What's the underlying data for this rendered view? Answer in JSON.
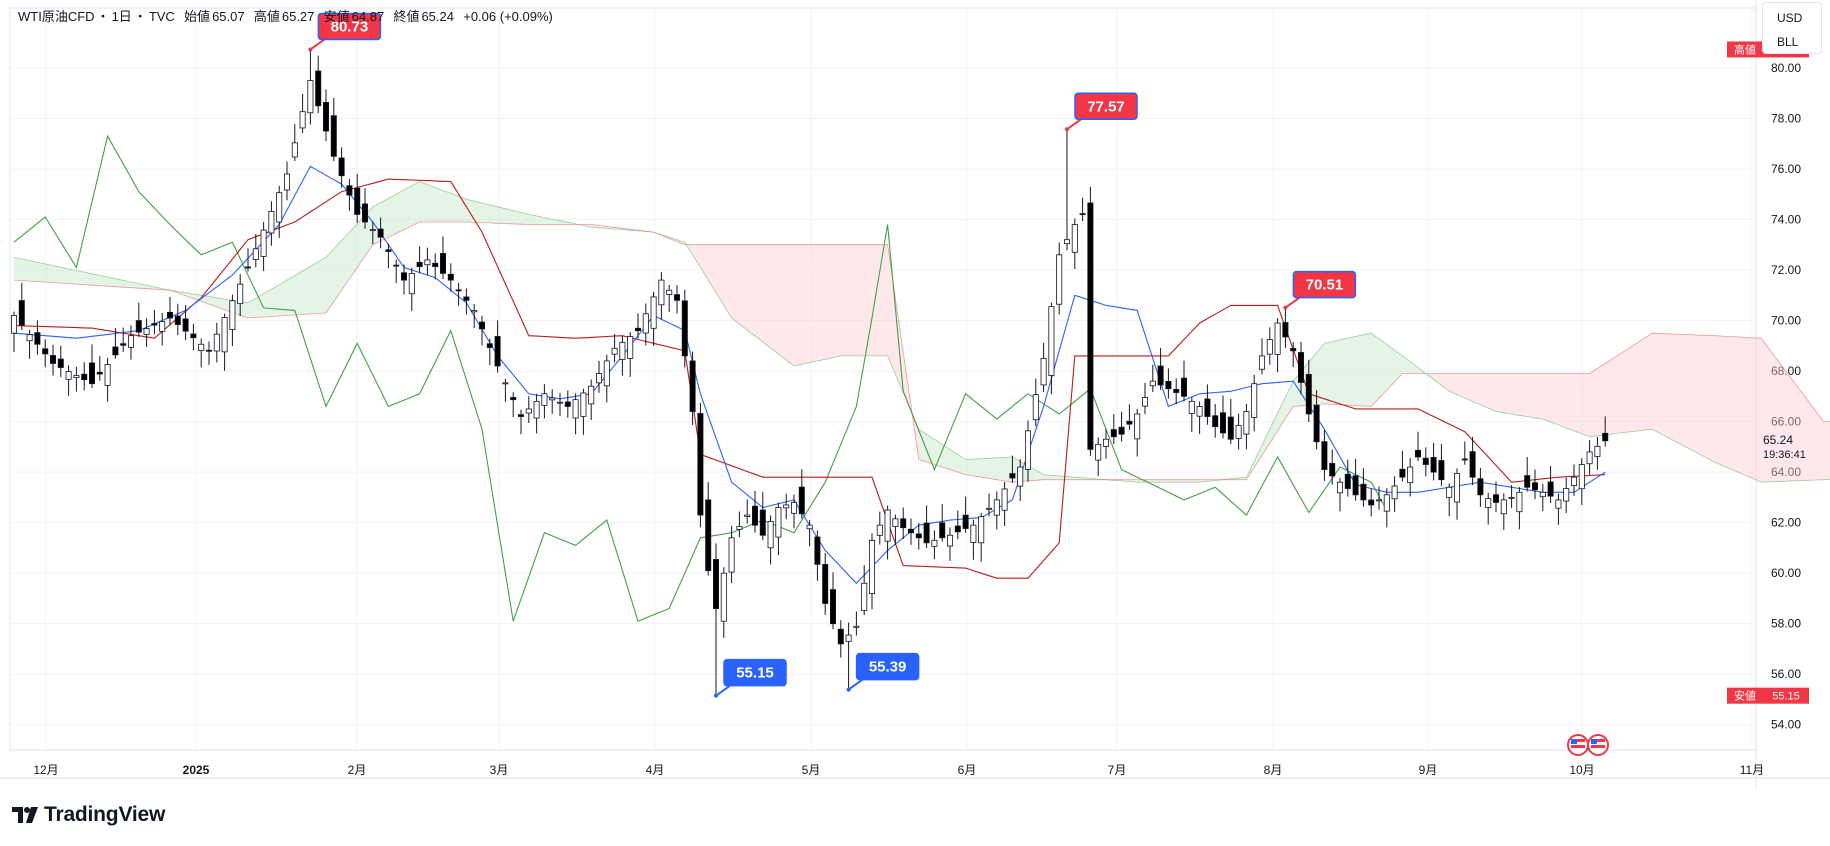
{
  "header": {
    "symbol": "WTI原油CFD",
    "sep1": "・",
    "timeframe": "1日",
    "sep2": "・",
    "source": "TVC",
    "open_label": "始値",
    "open": "65.07",
    "high_label": "高値",
    "high": "65.27",
    "low_label": "安値",
    "low": "64.87",
    "close_label": "終値",
    "close": "65.24",
    "change": "+0.06 (+0.09%)"
  },
  "currency": {
    "unit1": "USD",
    "unit2": "BLL"
  },
  "branding": {
    "name": "TradingView"
  },
  "colors": {
    "up_candle": "#ffffff",
    "down_candle": "#000000",
    "tenkan": "#2962ff",
    "kijun": "#b71c1c",
    "chikou": "#43a047",
    "kumo_bull": "#c8e6c9",
    "kumo_bear": "#ffcdd2",
    "callout_high": "#f23645",
    "callout_low": "#2962ff"
  },
  "chart_data": {
    "type": "candlestick",
    "indicator": "ichimoku",
    "y_axis": {
      "ticks": [
        "80.00",
        "78.00",
        "76.00",
        "74.00",
        "72.00",
        "70.00",
        "68.00",
        "66.00",
        "64.00",
        "62.00",
        "60.00",
        "58.00",
        "56.00",
        "54.00"
      ],
      "range": [
        53.0,
        81.5
      ]
    },
    "x_axis": {
      "labels": [
        "12月",
        "2025",
        "2月",
        "3月",
        "4月",
        "5月",
        "6月",
        "7月",
        "8月",
        "9月",
        "10月",
        "11月"
      ]
    },
    "last_price": "65.24",
    "countdown": "19:36:41",
    "high_badge": {
      "label": "高値",
      "value": "80.73"
    },
    "low_badge": {
      "label": "安値",
      "value": "55.15"
    },
    "callouts": [
      {
        "text": "80.73",
        "kind": "high",
        "date_index": 38,
        "price": 80.73
      },
      {
        "text": "77.57",
        "kind": "high",
        "date_index": 135,
        "price": 77.57
      },
      {
        "text": "70.51",
        "kind": "high",
        "date_index": 163,
        "price": 70.51
      },
      {
        "text": "55.15",
        "kind": "low",
        "date_index": 90,
        "price": 55.15
      },
      {
        "text": "55.39",
        "kind": "low",
        "date_index": 107,
        "price": 55.39
      }
    ],
    "key_closes": [
      [
        0,
        70.2
      ],
      [
        5,
        68.3
      ],
      [
        10,
        67.5
      ],
      [
        15,
        69.4
      ],
      [
        20,
        70.1
      ],
      [
        25,
        68.8
      ],
      [
        30,
        72.1
      ],
      [
        35,
        75.8
      ],
      [
        38,
        79.5
      ],
      [
        41,
        76.5
      ],
      [
        44,
        74.2
      ],
      [
        47,
        73.3
      ],
      [
        50,
        71.6
      ],
      [
        53,
        72.4
      ],
      [
        56,
        71.6
      ],
      [
        59,
        70.4
      ],
      [
        62,
        68.2
      ],
      [
        65,
        66.2
      ],
      [
        68,
        67.1
      ],
      [
        71,
        66.6
      ],
      [
        74,
        67.4
      ],
      [
        77,
        68.9
      ],
      [
        80,
        69.6
      ],
      [
        83,
        71.6
      ],
      [
        85,
        70.8
      ],
      [
        87,
        66.4
      ],
      [
        88,
        62.3
      ],
      [
        89,
        60.1
      ],
      [
        90,
        58.6
      ],
      [
        92,
        61.4
      ],
      [
        94,
        62.3
      ],
      [
        96,
        61.5
      ],
      [
        98,
        62.6
      ],
      [
        100,
        62.8
      ],
      [
        102,
        61.9
      ],
      [
        104,
        58.8
      ],
      [
        106,
        57.2
      ],
      [
        108,
        57.9
      ],
      [
        110,
        61.3
      ],
      [
        112,
        62.5
      ],
      [
        114,
        61.8
      ],
      [
        117,
        61.2
      ],
      [
        120,
        61.5
      ],
      [
        123,
        61.9
      ],
      [
        126,
        62.9
      ],
      [
        129,
        64.2
      ],
      [
        132,
        68.5
      ],
      [
        134,
        72.6
      ],
      [
        136,
        73.8
      ],
      [
        137,
        74.2
      ],
      [
        138,
        64.9
      ],
      [
        140,
        65.3
      ],
      [
        142,
        65.5
      ],
      [
        144,
        66.3
      ],
      [
        146,
        67.6
      ],
      [
        148,
        67.3
      ],
      [
        150,
        67.0
      ],
      [
        152,
        66.6
      ],
      [
        154,
        65.8
      ],
      [
        156,
        65.3
      ],
      [
        158,
        66.4
      ],
      [
        160,
        68.6
      ],
      [
        162,
        69.9
      ],
      [
        164,
        68.8
      ],
      [
        166,
        66.3
      ],
      [
        168,
        64.1
      ],
      [
        170,
        63.6
      ],
      [
        172,
        63.1
      ],
      [
        174,
        62.7
      ],
      [
        176,
        63.1
      ],
      [
        178,
        63.8
      ],
      [
        180,
        64.6
      ],
      [
        182,
        64.0
      ],
      [
        184,
        63.4
      ],
      [
        186,
        64.5
      ],
      [
        188,
        63.1
      ],
      [
        190,
        62.8
      ],
      [
        192,
        63.0
      ],
      [
        194,
        63.4
      ],
      [
        196,
        63.2
      ],
      [
        198,
        62.9
      ],
      [
        200,
        63.8
      ],
      [
        202,
        64.8
      ],
      [
        204,
        65.24
      ]
    ],
    "tenkan_points": [
      [
        0,
        69.5
      ],
      [
        8,
        69.3
      ],
      [
        16,
        69.6
      ],
      [
        22,
        70.4
      ],
      [
        28,
        71.8
      ],
      [
        34,
        73.8
      ],
      [
        38,
        76.1
      ],
      [
        42,
        75.4
      ],
      [
        46,
        73.9
      ],
      [
        50,
        72.1
      ],
      [
        54,
        71.7
      ],
      [
        58,
        70.7
      ],
      [
        62,
        68.6
      ],
      [
        66,
        67.1
      ],
      [
        70,
        66.9
      ],
      [
        74,
        67.1
      ],
      [
        78,
        68.6
      ],
      [
        82,
        70.2
      ],
      [
        86,
        69.6
      ],
      [
        88,
        67.1
      ],
      [
        92,
        63.6
      ],
      [
        96,
        62.6
      ],
      [
        100,
        62.9
      ],
      [
        104,
        60.9
      ],
      [
        108,
        59.6
      ],
      [
        112,
        60.9
      ],
      [
        116,
        61.9
      ],
      [
        120,
        62.1
      ],
      [
        124,
        62.2
      ],
      [
        128,
        62.9
      ],
      [
        132,
        66.6
      ],
      [
        136,
        71.0
      ],
      [
        140,
        70.6
      ],
      [
        144,
        70.4
      ],
      [
        148,
        66.6
      ],
      [
        152,
        67.1
      ],
      [
        156,
        67.2
      ],
      [
        160,
        67.5
      ],
      [
        164,
        67.6
      ],
      [
        168,
        65.7
      ],
      [
        172,
        63.5
      ],
      [
        176,
        63.2
      ],
      [
        180,
        63.2
      ],
      [
        184,
        63.4
      ],
      [
        188,
        63.6
      ],
      [
        192,
        63.4
      ],
      [
        196,
        63.2
      ],
      [
        200,
        63.2
      ],
      [
        204,
        64.0
      ]
    ],
    "kijun_points": [
      [
        0,
        69.8
      ],
      [
        10,
        69.7
      ],
      [
        18,
        69.3
      ],
      [
        24,
        70.9
      ],
      [
        30,
        73.2
      ],
      [
        36,
        73.9
      ],
      [
        42,
        75.1
      ],
      [
        48,
        75.6
      ],
      [
        56,
        75.5
      ],
      [
        60,
        73.5
      ],
      [
        66,
        69.4
      ],
      [
        72,
        69.3
      ],
      [
        78,
        69.4
      ],
      [
        86,
        68.8
      ],
      [
        88,
        64.7
      ],
      [
        96,
        63.8
      ],
      [
        104,
        63.8
      ],
      [
        110,
        63.8
      ],
      [
        114,
        60.3
      ],
      [
        122,
        60.2
      ],
      [
        126,
        59.8
      ],
      [
        130,
        59.8
      ],
      [
        134,
        61.2
      ],
      [
        136,
        68.6
      ],
      [
        144,
        68.6
      ],
      [
        148,
        68.6
      ],
      [
        152,
        69.9
      ],
      [
        156,
        70.6
      ],
      [
        162,
        70.6
      ],
      [
        166,
        67.1
      ],
      [
        172,
        66.5
      ],
      [
        180,
        66.5
      ],
      [
        186,
        65.6
      ],
      [
        192,
        63.6
      ],
      [
        198,
        63.8
      ],
      [
        204,
        63.9
      ]
    ],
    "chikou_points": [
      [
        0,
        73.1
      ],
      [
        4,
        74.1
      ],
      [
        8,
        72.1
      ],
      [
        12,
        77.3
      ],
      [
        16,
        75.1
      ],
      [
        20,
        73.8
      ],
      [
        24,
        72.6
      ],
      [
        28,
        73.1
      ],
      [
        32,
        70.5
      ],
      [
        36,
        70.4
      ],
      [
        40,
        66.6
      ],
      [
        44,
        69.1
      ],
      [
        48,
        66.6
      ],
      [
        52,
        67.1
      ],
      [
        56,
        69.6
      ],
      [
        60,
        65.7
      ],
      [
        64,
        58.1
      ],
      [
        68,
        61.6
      ],
      [
        72,
        61.1
      ],
      [
        76,
        62.1
      ],
      [
        80,
        58.1
      ],
      [
        84,
        58.6
      ],
      [
        88,
        61.4
      ],
      [
        92,
        61.6
      ],
      [
        96,
        62.1
      ],
      [
        100,
        61.6
      ],
      [
        104,
        63.6
      ],
      [
        108,
        66.6
      ],
      [
        110,
        70.1
      ],
      [
        112,
        73.8
      ],
      [
        114,
        67.2
      ],
      [
        118,
        64.1
      ],
      [
        122,
        67.1
      ],
      [
        126,
        66.1
      ],
      [
        130,
        67.1
      ],
      [
        134,
        66.3
      ],
      [
        138,
        67.3
      ],
      [
        142,
        64.1
      ],
      [
        146,
        63.5
      ],
      [
        150,
        62.9
      ],
      [
        154,
        63.4
      ],
      [
        158,
        62.3
      ],
      [
        162,
        64.6
      ],
      [
        166,
        62.4
      ],
      [
        170,
        64.2
      ],
      [
        174,
        63.6
      ],
      [
        176,
        62.5
      ]
    ],
    "kumo_spanA": [
      [
        0,
        72.5
      ],
      [
        20,
        71.2
      ],
      [
        30,
        70.7
      ],
      [
        40,
        72.5
      ],
      [
        46,
        74.5
      ],
      [
        52,
        75.5
      ],
      [
        58,
        74.8
      ],
      [
        66,
        74.2
      ],
      [
        74,
        73.7
      ],
      [
        82,
        73.5
      ],
      [
        86,
        73.1
      ],
      [
        92,
        70.1
      ],
      [
        100,
        68.2
      ],
      [
        106,
        68.6
      ],
      [
        112,
        68.6
      ],
      [
        116,
        65.7
      ],
      [
        122,
        64.5
      ],
      [
        128,
        64.6
      ],
      [
        132,
        63.9
      ],
      [
        136,
        63.8
      ],
      [
        140,
        63.7
      ],
      [
        144,
        63.6
      ],
      [
        152,
        63.6
      ],
      [
        158,
        63.8
      ],
      [
        164,
        67.6
      ],
      [
        168,
        69.1
      ],
      [
        174,
        69.5
      ],
      [
        178,
        68.6
      ],
      [
        184,
        67.2
      ],
      [
        190,
        66.4
      ],
      [
        196,
        66.1
      ],
      [
        202,
        65.4
      ],
      [
        210,
        65.7
      ],
      [
        218,
        64.4
      ],
      [
        224,
        63.6
      ],
      [
        232,
        63.7
      ],
      [
        240,
        63.9
      ],
      [
        244,
        64.0
      ]
    ],
    "kumo_spanB": [
      [
        0,
        71.6
      ],
      [
        20,
        71.2
      ],
      [
        30,
        70.1
      ],
      [
        40,
        70.3
      ],
      [
        46,
        73.0
      ],
      [
        52,
        73.9
      ],
      [
        58,
        73.9
      ],
      [
        66,
        73.8
      ],
      [
        74,
        73.8
      ],
      [
        82,
        73.5
      ],
      [
        86,
        73.0
      ],
      [
        92,
        73.0
      ],
      [
        100,
        73.0
      ],
      [
        106,
        73.0
      ],
      [
        112,
        73.0
      ],
      [
        116,
        64.5
      ],
      [
        122,
        63.9
      ],
      [
        128,
        63.6
      ],
      [
        132,
        63.7
      ],
      [
        136,
        63.7
      ],
      [
        140,
        63.7
      ],
      [
        144,
        63.7
      ],
      [
        152,
        63.7
      ],
      [
        158,
        63.7
      ],
      [
        164,
        66.6
      ],
      [
        168,
        66.7
      ],
      [
        174,
        66.6
      ],
      [
        178,
        67.9
      ],
      [
        184,
        67.9
      ],
      [
        190,
        67.9
      ],
      [
        196,
        67.9
      ],
      [
        202,
        67.9
      ],
      [
        210,
        69.5
      ],
      [
        218,
        69.4
      ],
      [
        224,
        69.3
      ],
      [
        232,
        66.0
      ],
      [
        240,
        66.0
      ],
      [
        244,
        66.0
      ]
    ]
  }
}
